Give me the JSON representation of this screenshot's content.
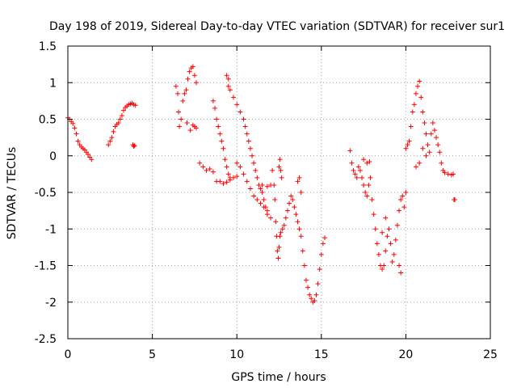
{
  "chart_data": {
    "type": "scatter",
    "title": "Day 198 of 2019, Sidereal Day-to-day VTEC variation (SDTVAR) for receiver sur1",
    "xlabel": "GPS time / hours",
    "ylabel": "SDTVAR / TECUs",
    "xlim": [
      0,
      25
    ],
    "ylim": [
      -2.5,
      1.5
    ],
    "grid": true,
    "marker": "+",
    "color": "#ff0000",
    "x_ticks": [
      "0",
      "5",
      "10",
      "15",
      "20",
      "25"
    ],
    "y_ticks": [
      "-2.5",
      "-2",
      "-1.5",
      "-1",
      "-0.5",
      "0",
      "0.5",
      "1",
      "1.5"
    ],
    "series": [
      {
        "name": "sur1",
        "points": [
          [
            0.0,
            0.52
          ],
          [
            0.1,
            0.5
          ],
          [
            0.2,
            0.47
          ],
          [
            0.3,
            0.44
          ],
          [
            0.4,
            0.38
          ],
          [
            0.5,
            0.3
          ],
          [
            0.6,
            0.2
          ],
          [
            0.7,
            0.15
          ],
          [
            0.8,
            0.12
          ],
          [
            0.9,
            0.1
          ],
          [
            1.0,
            0.08
          ],
          [
            1.1,
            0.05
          ],
          [
            1.2,
            0.02
          ],
          [
            1.3,
            -0.02
          ],
          [
            1.4,
            -0.05
          ],
          [
            2.4,
            0.15
          ],
          [
            2.5,
            0.2
          ],
          [
            2.6,
            0.25
          ],
          [
            2.7,
            0.33
          ],
          [
            2.8,
            0.4
          ],
          [
            2.9,
            0.43
          ],
          [
            3.0,
            0.45
          ],
          [
            3.1,
            0.5
          ],
          [
            3.2,
            0.55
          ],
          [
            3.3,
            0.62
          ],
          [
            3.4,
            0.66
          ],
          [
            3.5,
            0.68
          ],
          [
            3.6,
            0.7
          ],
          [
            3.7,
            0.71
          ],
          [
            3.8,
            0.72
          ],
          [
            3.9,
            0.7
          ],
          [
            4.0,
            0.69
          ],
          [
            3.85,
            0.15
          ],
          [
            3.9,
            0.13
          ],
          [
            3.95,
            0.14
          ],
          [
            6.4,
            0.95
          ],
          [
            6.5,
            0.85
          ],
          [
            6.55,
            0.6
          ],
          [
            6.6,
            0.4
          ],
          [
            6.7,
            0.5
          ],
          [
            6.8,
            0.75
          ],
          [
            6.9,
            0.85
          ],
          [
            7.0,
            0.9
          ],
          [
            7.05,
            0.45
          ],
          [
            7.1,
            1.05
          ],
          [
            7.2,
            1.15
          ],
          [
            7.25,
            0.35
          ],
          [
            7.3,
            1.2
          ],
          [
            7.4,
            1.22
          ],
          [
            7.5,
            1.1
          ],
          [
            7.6,
            1.0
          ],
          [
            7.5,
            0.4
          ],
          [
            7.4,
            0.42
          ],
          [
            7.6,
            0.38
          ],
          [
            7.8,
            -0.1
          ],
          [
            8.0,
            -0.15
          ],
          [
            8.2,
            -0.2
          ],
          [
            8.4,
            -0.18
          ],
          [
            8.6,
            -0.22
          ],
          [
            8.6,
            0.75
          ],
          [
            8.7,
            0.65
          ],
          [
            8.8,
            0.5
          ],
          [
            8.9,
            0.4
          ],
          [
            9.0,
            0.3
          ],
          [
            9.1,
            0.2
          ],
          [
            9.2,
            0.1
          ],
          [
            9.3,
            -0.05
          ],
          [
            9.4,
            -0.15
          ],
          [
            9.5,
            -0.25
          ],
          [
            9.6,
            -0.3
          ],
          [
            8.8,
            -0.35
          ],
          [
            9.0,
            -0.35
          ],
          [
            9.2,
            -0.38
          ],
          [
            9.4,
            -0.36
          ],
          [
            9.6,
            -0.33
          ],
          [
            9.8,
            -0.3
          ],
          [
            10.0,
            -0.28
          ],
          [
            9.5,
            0.95
          ],
          [
            9.6,
            0.9
          ],
          [
            9.8,
            0.8
          ],
          [
            10.0,
            0.7
          ],
          [
            10.2,
            0.6
          ],
          [
            10.4,
            0.5
          ],
          [
            10.5,
            0.4
          ],
          [
            10.6,
            0.3
          ],
          [
            10.7,
            0.2
          ],
          [
            10.8,
            0.1
          ],
          [
            10.9,
            0.0
          ],
          [
            11.0,
            -0.1
          ],
          [
            11.1,
            -0.2
          ],
          [
            11.2,
            -0.3
          ],
          [
            11.3,
            -0.4
          ],
          [
            11.4,
            -0.45
          ],
          [
            11.5,
            -0.5
          ],
          [
            11.6,
            -0.6
          ],
          [
            11.7,
            -0.7
          ],
          [
            11.8,
            -0.75
          ],
          [
            9.4,
            1.1
          ],
          [
            9.5,
            1.05
          ],
          [
            10.0,
            -0.1
          ],
          [
            10.2,
            -0.15
          ],
          [
            10.4,
            -0.25
          ],
          [
            10.6,
            -0.35
          ],
          [
            10.8,
            -0.45
          ],
          [
            11.0,
            -0.55
          ],
          [
            11.2,
            -0.6
          ],
          [
            11.4,
            -0.65
          ],
          [
            11.6,
            -0.7
          ],
          [
            11.8,
            -0.8
          ],
          [
            12.0,
            -0.85
          ],
          [
            11.5,
            -0.4
          ],
          [
            11.8,
            -0.42
          ],
          [
            12.0,
            -0.4
          ],
          [
            12.1,
            -0.2
          ],
          [
            12.2,
            -0.4
          ],
          [
            12.25,
            -0.6
          ],
          [
            12.3,
            -0.9
          ],
          [
            12.35,
            -1.1
          ],
          [
            12.4,
            -1.3
          ],
          [
            12.45,
            -1.4
          ],
          [
            12.5,
            -1.25
          ],
          [
            12.55,
            -1.1
          ],
          [
            12.6,
            -1.05
          ],
          [
            12.7,
            -1.0
          ],
          [
            12.8,
            -0.95
          ],
          [
            12.9,
            -0.85
          ],
          [
            13.0,
            -0.75
          ],
          [
            13.1,
            -0.65
          ],
          [
            13.2,
            -0.55
          ],
          [
            12.5,
            -0.15
          ],
          [
            12.55,
            -0.05
          ],
          [
            12.6,
            -0.2
          ],
          [
            12.65,
            -0.3
          ],
          [
            13.3,
            -0.6
          ],
          [
            13.4,
            -0.7
          ],
          [
            13.5,
            -0.8
          ],
          [
            13.6,
            -0.9
          ],
          [
            13.7,
            -1.0
          ],
          [
            13.8,
            -1.1
          ],
          [
            13.9,
            -1.3
          ],
          [
            14.0,
            -1.5
          ],
          [
            14.1,
            -1.7
          ],
          [
            14.2,
            -1.8
          ],
          [
            14.3,
            -1.9
          ],
          [
            14.4,
            -1.95
          ],
          [
            14.5,
            -2.0
          ],
          [
            14.6,
            -1.98
          ],
          [
            14.7,
            -1.9
          ],
          [
            14.8,
            -1.75
          ],
          [
            14.9,
            -1.55
          ],
          [
            15.0,
            -1.35
          ],
          [
            15.1,
            -1.2
          ],
          [
            15.2,
            -1.12
          ],
          [
            13.6,
            -0.35
          ],
          [
            13.7,
            -0.3
          ],
          [
            13.8,
            -0.5
          ],
          [
            16.7,
            0.07
          ],
          [
            16.8,
            -0.1
          ],
          [
            16.9,
            -0.2
          ],
          [
            17.0,
            -0.25
          ],
          [
            17.1,
            -0.3
          ],
          [
            17.2,
            -0.15
          ],
          [
            17.3,
            -0.2
          ],
          [
            17.4,
            -0.3
          ],
          [
            17.5,
            -0.4
          ],
          [
            17.6,
            -0.5
          ],
          [
            17.7,
            -0.55
          ],
          [
            17.8,
            -0.4
          ],
          [
            17.9,
            -0.3
          ],
          [
            17.5,
            -0.05
          ],
          [
            17.7,
            -0.1
          ],
          [
            17.85,
            -0.08
          ],
          [
            18.0,
            -0.6
          ],
          [
            18.1,
            -0.8
          ],
          [
            18.2,
            -1.0
          ],
          [
            18.3,
            -1.2
          ],
          [
            18.4,
            -1.35
          ],
          [
            18.5,
            -1.5
          ],
          [
            18.6,
            -1.55
          ],
          [
            18.7,
            -1.5
          ],
          [
            18.8,
            -1.3
          ],
          [
            18.9,
            -1.1
          ],
          [
            19.0,
            -1.0
          ],
          [
            19.1,
            -1.2
          ],
          [
            19.2,
            -1.45
          ],
          [
            19.3,
            -1.35
          ],
          [
            19.4,
            -1.15
          ],
          [
            19.5,
            -0.95
          ],
          [
            19.6,
            -0.75
          ],
          [
            19.7,
            -0.6
          ],
          [
            19.8,
            -0.55
          ],
          [
            19.9,
            -0.7
          ],
          [
            20.0,
            -0.5
          ],
          [
            19.7,
            -1.6
          ],
          [
            19.6,
            -1.5
          ],
          [
            18.6,
            -1.05
          ],
          [
            18.8,
            -0.85
          ],
          [
            20.0,
            0.1
          ],
          [
            20.1,
            0.15
          ],
          [
            20.2,
            0.2
          ],
          [
            20.3,
            0.4
          ],
          [
            20.4,
            0.6
          ],
          [
            20.5,
            0.7
          ],
          [
            20.6,
            0.85
          ],
          [
            20.7,
            0.95
          ],
          [
            20.8,
            1.02
          ],
          [
            20.9,
            0.8
          ],
          [
            21.0,
            0.6
          ],
          [
            21.1,
            0.45
          ],
          [
            21.2,
            0.3
          ],
          [
            21.3,
            0.15
          ],
          [
            21.4,
            0.05
          ],
          [
            21.5,
            0.3
          ],
          [
            21.6,
            0.45
          ],
          [
            21.7,
            0.35
          ],
          [
            21.8,
            0.25
          ],
          [
            21.9,
            0.15
          ],
          [
            22.0,
            0.05
          ],
          [
            22.1,
            -0.1
          ],
          [
            22.2,
            -0.2
          ],
          [
            22.3,
            -0.23
          ],
          [
            22.5,
            -0.25
          ],
          [
            22.7,
            -0.26
          ],
          [
            22.8,
            -0.25
          ],
          [
            20.6,
            -0.15
          ],
          [
            20.8,
            -0.1
          ],
          [
            21.0,
            0.1
          ],
          [
            21.2,
            0.0
          ],
          [
            22.85,
            -0.6
          ],
          [
            22.9,
            -0.6
          ]
        ]
      }
    ]
  }
}
